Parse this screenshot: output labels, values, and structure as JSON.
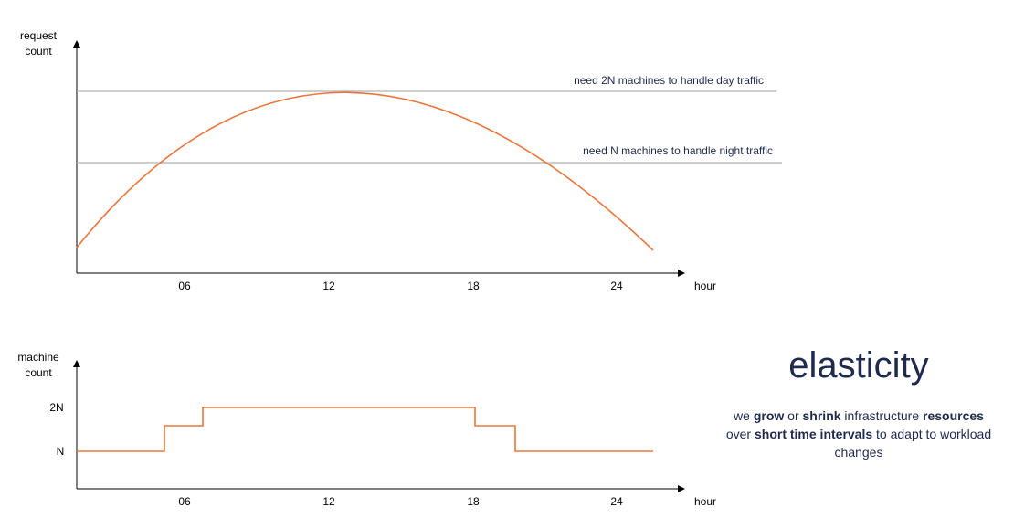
{
  "top_chart": {
    "ylabel_line1": "request",
    "ylabel_line2": "count",
    "xlabel": "hour",
    "ticks": [
      "06",
      "12",
      "18",
      "24"
    ],
    "annotation_day": "need 2N machines to handle day traffic",
    "annotation_night": "need N machines to handle night traffic"
  },
  "bottom_chart": {
    "ylabel_line1": "machine",
    "ylabel_line2": "count",
    "xlabel": "hour",
    "ticks": [
      "06",
      "12",
      "18",
      "24"
    ],
    "y_ticks": [
      "2N",
      "N"
    ]
  },
  "panel": {
    "title": "elasticity",
    "desc_1": "we ",
    "desc_2": "grow",
    "desc_3": " or ",
    "desc_4": "shrink",
    "desc_5": " infrastructure ",
    "desc_6": "resources",
    "desc_7": "over ",
    "desc_8": "short time intervals",
    "desc_9": " to adapt to workload changes"
  },
  "colors": {
    "curve": "#e8763a",
    "axis": "#000000",
    "threshold": "#b0b0b0",
    "text_dark": "#1f2a4d"
  }
}
